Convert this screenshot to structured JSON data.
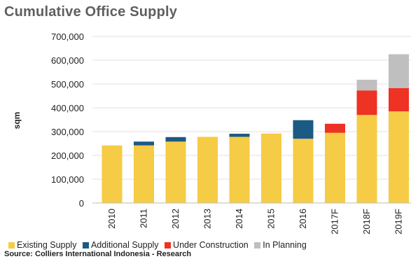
{
  "chart_data": {
    "type": "bar",
    "stacked": true,
    "title": "Cumulative Office Supply",
    "xlabel": "",
    "ylabel": "sqm",
    "ylim": [
      0,
      700000
    ],
    "yticks": [
      "0",
      "100,000",
      "200,000",
      "300,000",
      "400,000",
      "500,000",
      "600,000",
      "700,000"
    ],
    "grid": true,
    "legend_position": "bottom",
    "categories": [
      "2010",
      "2011",
      "2012",
      "2013",
      "2014",
      "2015",
      "2016",
      "2017F",
      "2018F",
      "2019F"
    ],
    "series": [
      {
        "name": "Existing Supply",
        "color": "#f6cb45",
        "values": [
          242000,
          242000,
          258000,
          278000,
          278000,
          292000,
          270000,
          295000,
          370000,
          385000
        ]
      },
      {
        "name": "Additional Supply",
        "color": "#1a5a84",
        "values": [
          0,
          16000,
          19000,
          0,
          13000,
          0,
          78000,
          0,
          0,
          0
        ]
      },
      {
        "name": "Under Construction",
        "color": "#ee3223",
        "values": [
          0,
          0,
          0,
          0,
          0,
          0,
          0,
          38000,
          103000,
          98000
        ]
      },
      {
        "name": "In Planning",
        "color": "#bfbfbf",
        "values": [
          0,
          0,
          0,
          0,
          0,
          0,
          0,
          0,
          45000,
          142000
        ]
      }
    ]
  },
  "legend": {
    "items": [
      {
        "label": "Existing Supply",
        "color": "#f6cb45"
      },
      {
        "label": "Additional Supply",
        "color": "#1a5a84"
      },
      {
        "label": "Under Construction",
        "color": "#ee3223"
      },
      {
        "label": "In Planning",
        "color": "#bfbfbf"
      }
    ]
  },
  "source": "Source: Colliers International Indonesia - Research"
}
